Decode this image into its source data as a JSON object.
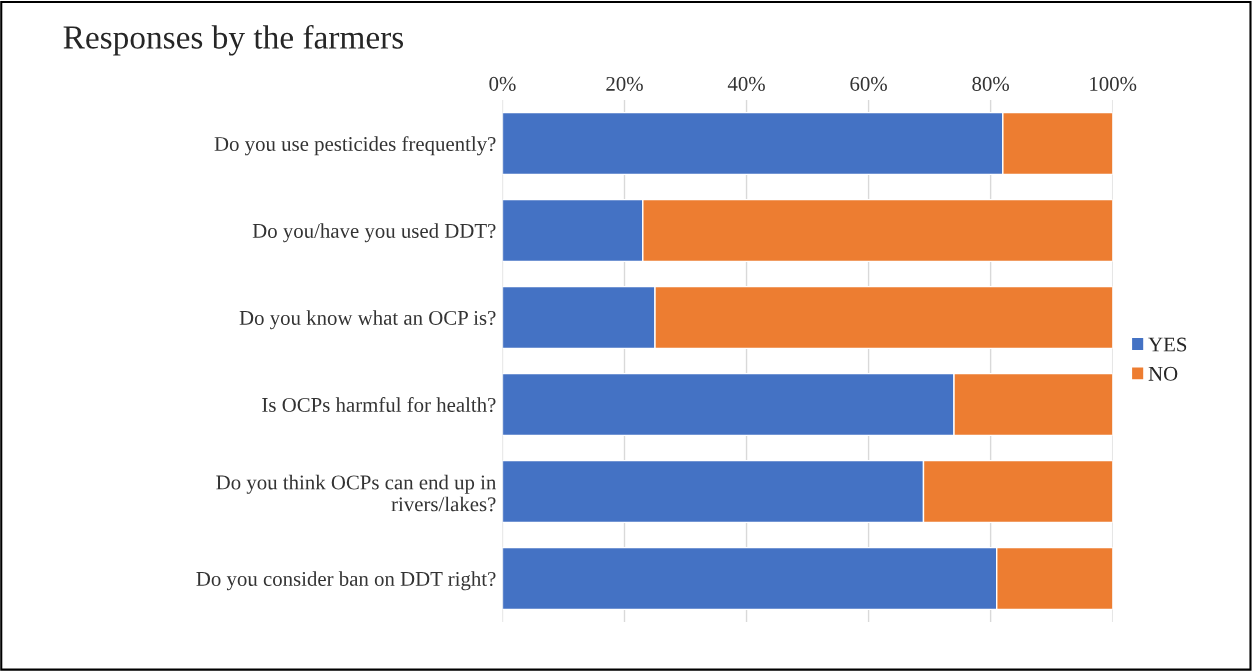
{
  "chart_data": {
    "type": "bar",
    "orientation": "horizontal",
    "stacked": true,
    "title": "Responses by the farmers",
    "categories": [
      "Do you use pesticides frequently?",
      "Do you/have you used DDT?",
      "Do you know what an OCP is?",
      "Is OCPs harmful for health?",
      "Do you think OCPs can end up in\nrivers/lakes?",
      "Do you consider ban on DDT right?"
    ],
    "series": [
      {
        "name": "YES",
        "color": "#4472c4",
        "values": [
          82,
          23,
          25,
          74,
          69,
          81
        ]
      },
      {
        "name": "NO",
        "color": "#ed7d31",
        "values": [
          18,
          77,
          75,
          26,
          31,
          19
        ]
      }
    ],
    "xlim": [
      0,
      100
    ],
    "xticks": [
      {
        "value": 0,
        "label": "0%"
      },
      {
        "value": 20,
        "label": "20%"
      },
      {
        "value": 40,
        "label": "40%"
      },
      {
        "value": 60,
        "label": "60%"
      },
      {
        "value": 80,
        "label": "80%"
      },
      {
        "value": 100,
        "label": "100%"
      }
    ],
    "grid": "x",
    "legend": "right"
  }
}
